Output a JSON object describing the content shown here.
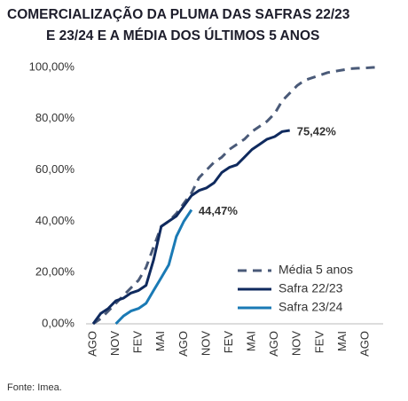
{
  "chart_data": {
    "type": "line",
    "title": [
      "COMERCIALIZAÇÃO DA PLUMA DAS SAFRAS 22/23",
      "E 23/24 E A MÉDIA DOS ÚLTIMOS 5 ANOS"
    ],
    "categories": [
      "AGO",
      null,
      null,
      "NOV",
      null,
      null,
      "FEV",
      null,
      null,
      "MAI",
      null,
      null,
      "AGO",
      null,
      null,
      "NOV",
      null,
      null,
      "FEV",
      null,
      null,
      "MAI",
      null,
      null,
      "AGO",
      null,
      null,
      "NOV",
      null,
      null,
      "FEV",
      null,
      null,
      "MAI",
      null,
      null,
      "AGO",
      null,
      null
    ],
    "series": [
      {
        "name": "Média 5 anos",
        "color": "#4a5a78",
        "dashed": true,
        "values": [
          0,
          2,
          5,
          8,
          11,
          14,
          17,
          22,
          30,
          38,
          40,
          43,
          47,
          51,
          57,
          60,
          63,
          65,
          68,
          70,
          72,
          75,
          77,
          79,
          82,
          87,
          90,
          93,
          95,
          96,
          97,
          98,
          98.5,
          99,
          99.5,
          99.7,
          99.8,
          100,
          100
        ]
      },
      {
        "name": "Safra 22/23",
        "color": "#0f2a5e",
        "values": [
          0,
          4,
          6,
          9,
          10,
          12,
          13,
          15,
          25,
          38,
          40,
          42,
          46,
          50,
          52,
          53,
          55,
          59,
          61,
          62,
          65,
          68,
          70,
          72,
          73,
          75,
          75.42,
          null,
          null,
          null,
          null,
          null,
          null,
          null,
          null,
          null,
          null,
          null,
          null
        ],
        "value_labels": [
          null,
          null,
          null,
          null,
          null,
          null,
          null,
          null,
          null,
          null,
          null,
          null,
          null,
          null,
          null,
          null,
          null,
          null,
          null,
          null,
          null,
          null,
          null,
          null,
          null,
          null,
          "75,42%",
          null,
          null,
          null,
          null,
          null,
          null,
          null,
          null,
          null,
          null,
          null,
          null
        ]
      },
      {
        "name": "Safra 23/24",
        "color": "#1a7ab5",
        "values": [
          null,
          null,
          null,
          0,
          3,
          5,
          6,
          8,
          13,
          18,
          23,
          34,
          40,
          44.47,
          null,
          null,
          null,
          null,
          null,
          null,
          null,
          null,
          null,
          null,
          null,
          null,
          null,
          null,
          null,
          null,
          null,
          null,
          null,
          null,
          null,
          null,
          null,
          null,
          null
        ],
        "value_labels": [
          null,
          null,
          null,
          null,
          null,
          null,
          null,
          null,
          null,
          null,
          null,
          null,
          null,
          "44,47%",
          null,
          null,
          null,
          null,
          null,
          null,
          null,
          null,
          null,
          null,
          null,
          null,
          null,
          null,
          null,
          null,
          null,
          null,
          null,
          null,
          null,
          null,
          null,
          null,
          null
        ]
      }
    ],
    "ylim": [
      0,
      100
    ],
    "yticks": [
      {
        "value": 0,
        "label": "0,00%"
      },
      {
        "value": 20,
        "label": "20,00%"
      },
      {
        "value": 40,
        "label": "40,00%"
      },
      {
        "value": 60,
        "label": "60,00%"
      },
      {
        "value": 80,
        "label": "80,00%"
      },
      {
        "value": 100,
        "label": "100,00%"
      }
    ],
    "legend": "lower right",
    "source": "Fonte: Imea."
  }
}
